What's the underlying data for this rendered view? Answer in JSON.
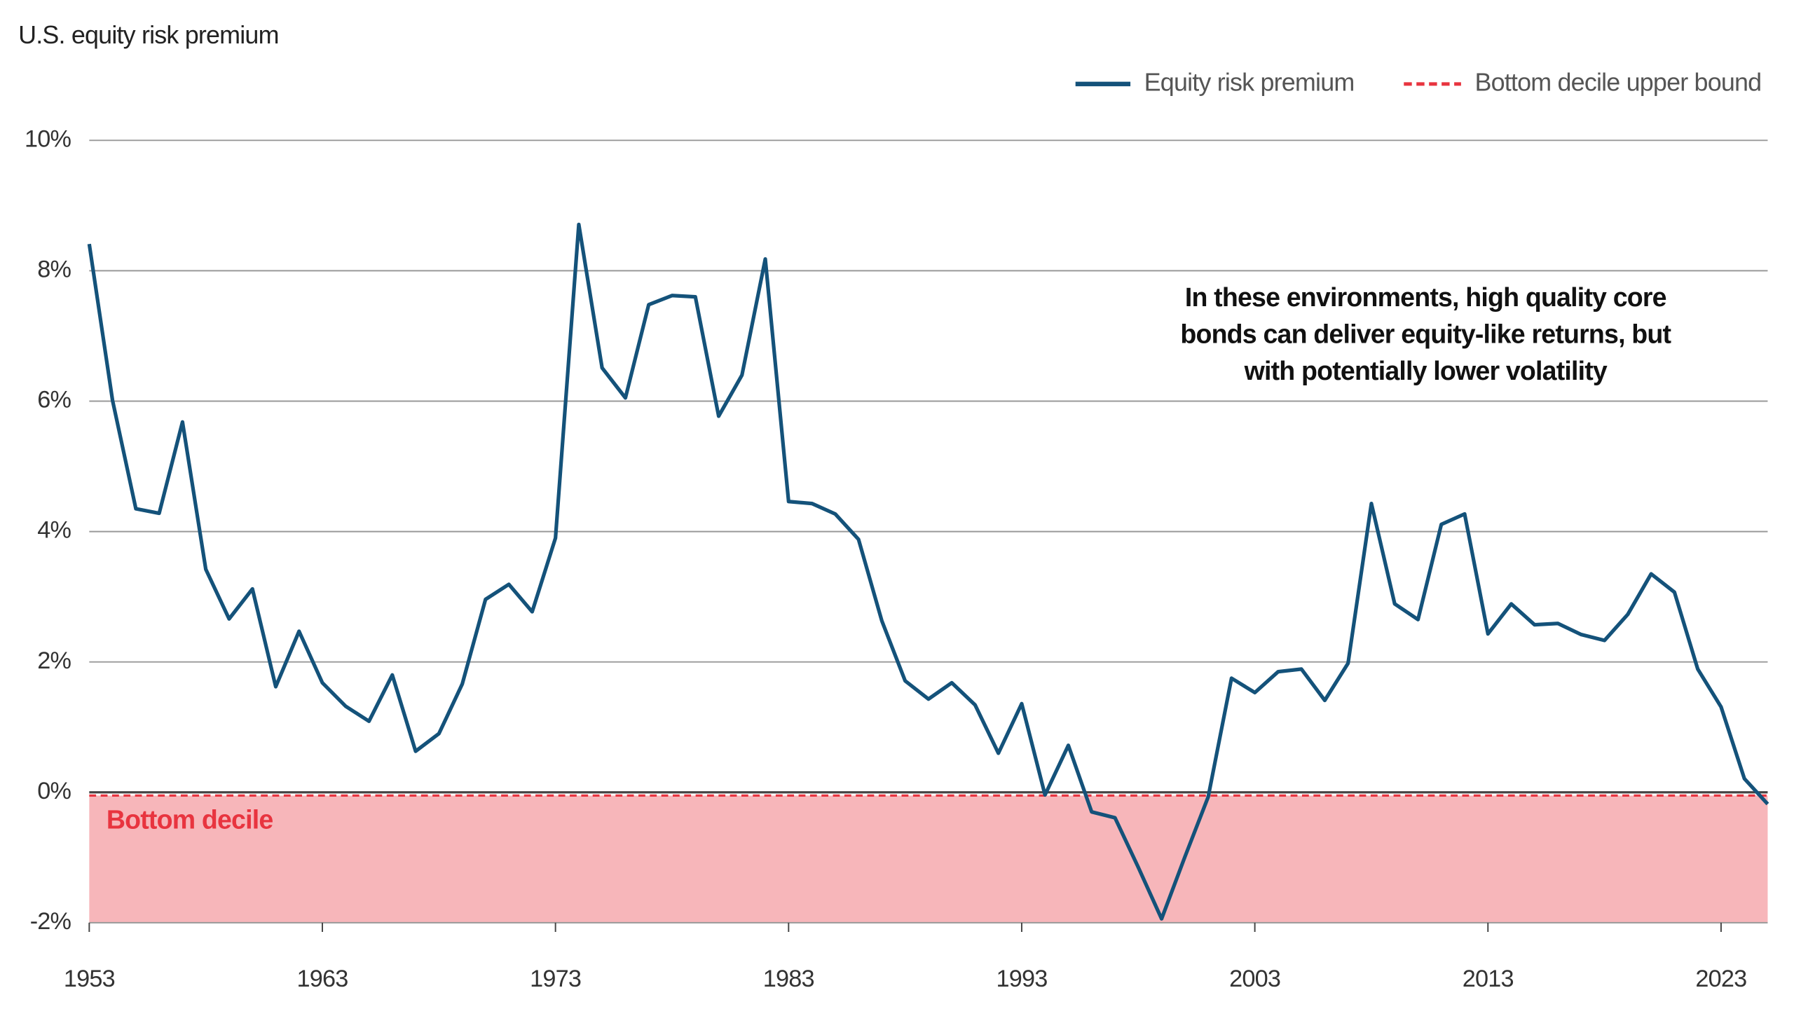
{
  "chart_data": {
    "type": "line",
    "title": "U.S. equity risk premium",
    "annotation": [
      "In these environments, high quality core",
      "bonds can deliver equity-like returns, but",
      "with potentially lower volatility"
    ],
    "x": [
      1953,
      1954,
      1955,
      1956,
      1957,
      1958,
      1959,
      1960,
      1961,
      1962,
      1963,
      1964,
      1965,
      1966,
      1967,
      1968,
      1969,
      1970,
      1971,
      1972,
      1973,
      1974,
      1975,
      1976,
      1977,
      1978,
      1979,
      1980,
      1981,
      1982,
      1983,
      1984,
      1985,
      1986,
      1987,
      1988,
      1989,
      1990,
      1991,
      1992,
      1993,
      1994,
      1995,
      1996,
      1997,
      1998,
      1999,
      2000,
      2001,
      2002,
      2003,
      2004,
      2005,
      2006,
      2007,
      2008,
      2009,
      2010,
      2011,
      2012,
      2013,
      2014,
      2015,
      2016,
      2017,
      2018,
      2019,
      2020,
      2021,
      2022,
      2023,
      2024,
      2025
    ],
    "series": [
      {
        "name": "Equity risk premium",
        "color": "#14527a",
        "values": [
          8.41,
          6.01,
          4.35,
          4.28,
          5.68,
          3.42,
          2.66,
          3.12,
          1.62,
          2.47,
          1.68,
          1.32,
          1.09,
          1.8,
          0.63,
          0.9,
          1.66,
          2.96,
          3.19,
          2.77,
          3.9,
          8.71,
          6.51,
          6.05,
          7.48,
          7.62,
          7.6,
          5.77,
          6.4,
          8.18,
          4.46,
          4.43,
          4.27,
          3.88,
          2.63,
          1.71,
          1.43,
          1.68,
          1.34,
          0.6,
          1.36,
          -0.04,
          0.72,
          -0.3,
          -0.39,
          -1.15,
          -1.94,
          -0.99,
          -0.07,
          1.75,
          1.53,
          1.85,
          1.89,
          1.41,
          1.98,
          4.43,
          2.89,
          2.65,
          4.11,
          4.27,
          2.43,
          2.89,
          2.57,
          2.59,
          2.42,
          2.33,
          2.73,
          3.35,
          3.07,
          1.89,
          1.31,
          0.21,
          -0.18
        ]
      }
    ],
    "reference_line": {
      "name": "Bottom decile upper bound",
      "value": -0.05,
      "color": "#e8343f"
    },
    "band": {
      "label": "Bottom decile",
      "color": "#f7b6ba",
      "label_color": "#e8343f"
    },
    "xlim": [
      1953,
      2025
    ],
    "xticks": [
      1953,
      1963,
      1973,
      1983,
      1993,
      2003,
      2013,
      2023
    ],
    "ylim": [
      -2,
      10
    ],
    "yticks": [
      {
        "value": -2,
        "label": "-2%"
      },
      {
        "value": 0,
        "label": "0%"
      },
      {
        "value": 2,
        "label": "2%"
      },
      {
        "value": 4,
        "label": "4%"
      },
      {
        "value": 6,
        "label": "6%"
      },
      {
        "value": 8,
        "label": "8%"
      },
      {
        "value": 10,
        "label": "10%"
      }
    ],
    "grid": true
  }
}
